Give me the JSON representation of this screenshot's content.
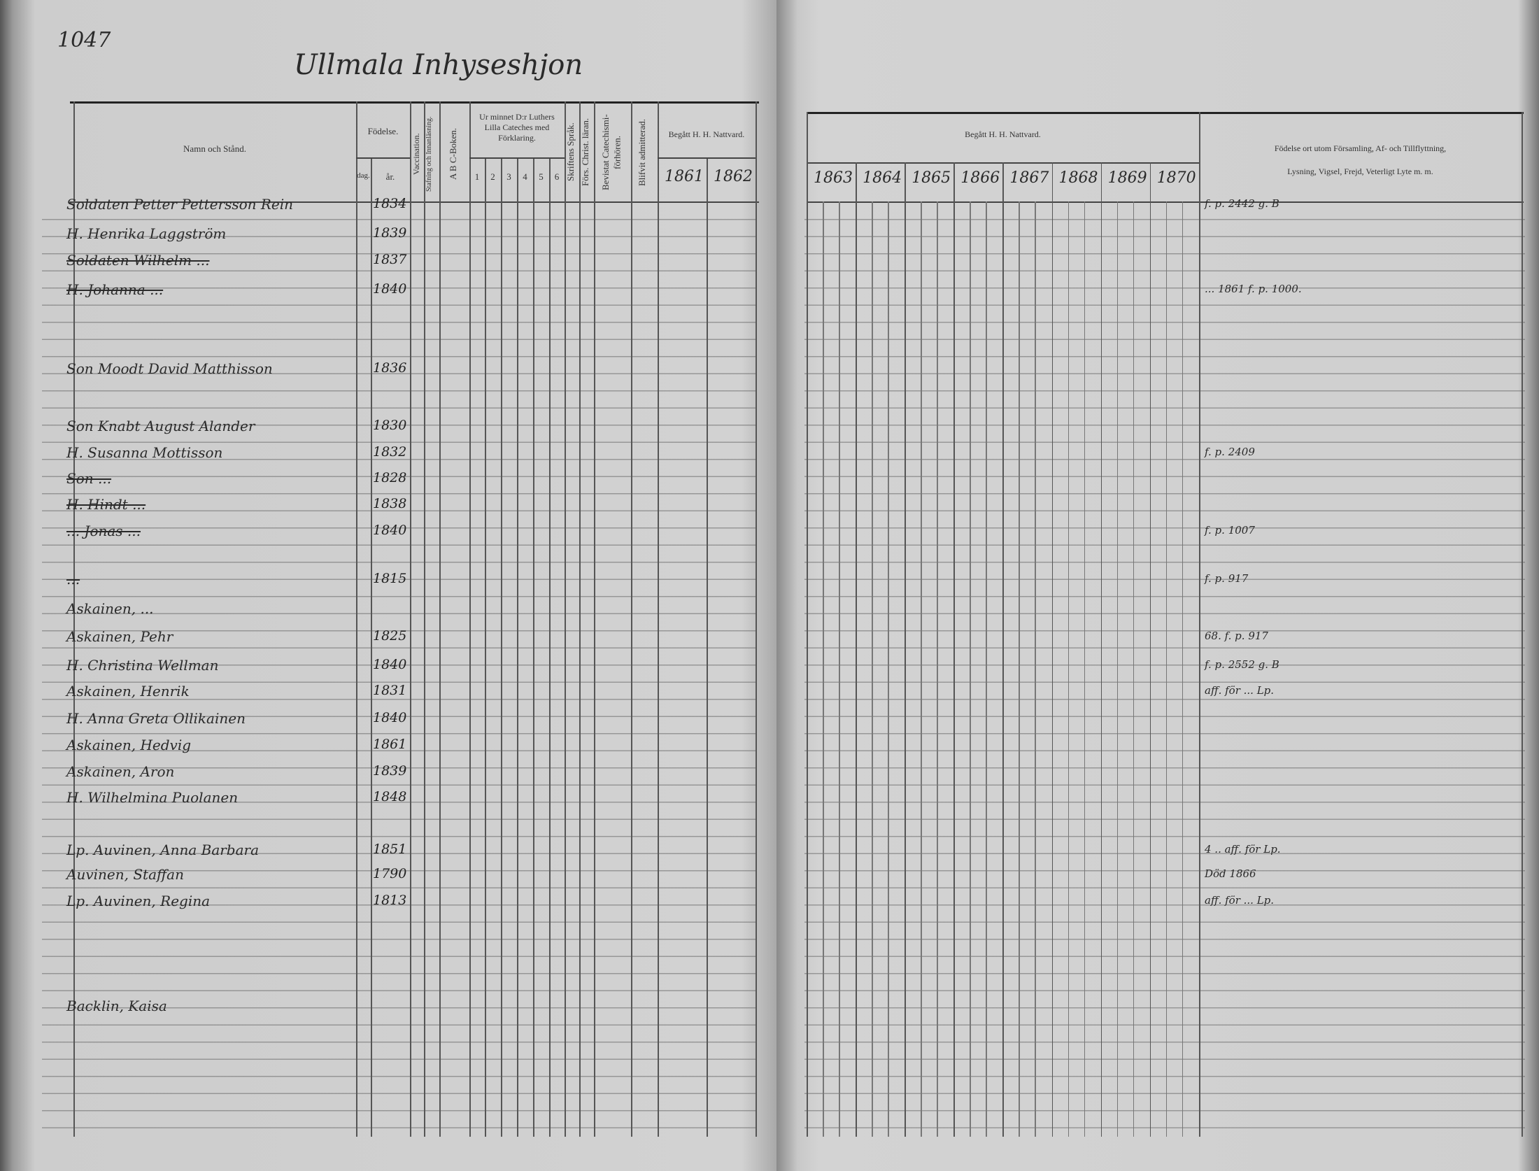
{
  "left_page": {
    "page_number": "1047",
    "title": "Ullmala Inhyseshjon",
    "headers": {
      "name": "Namn och Stånd.",
      "birth": "Födelse.",
      "birth_day": "dag.",
      "birth_year": "år.",
      "vaccination": "Vaccination.",
      "spelling": "Stafning och Innanläsning.",
      "abc": "A B C-Boken.",
      "catechism": "Ur minnet D:r Luthers Lilla Cateches med Förklaring.",
      "catechism_cols": [
        "1",
        "2",
        "3",
        "4",
        "5",
        "6"
      ],
      "scripture": "Skriftens Språk.",
      "christian": "Förs. Christ. läran.",
      "attended": "Bevistat Catechismi-förhören.",
      "admitted": "Blifvit admitterad.",
      "communion": "Begått H. H. Nattvard.",
      "years": [
        "1861",
        "1862"
      ]
    },
    "entries": [
      {
        "name": "Soldaten Petter Pettersson Rein",
        "year": "1834",
        "struck": false
      },
      {
        "name": "H. Henrika Laggström",
        "year": "1839",
        "struck": false
      },
      {
        "name": "Soldaten Wilhelm ...",
        "year": "1837",
        "struck": true
      },
      {
        "name": "H. Johanna ...",
        "year": "1840",
        "struck": true
      },
      {
        "name": "Son Moodt David Matthisson",
        "year": "1836",
        "struck": false
      },
      {
        "name": "Son Knabt August Alander",
        "year": "1830",
        "struck": false
      },
      {
        "name": "H. Susanna Mottisson",
        "year": "1832",
        "struck": false
      },
      {
        "name": "Son ...",
        "year": "1828",
        "struck": true
      },
      {
        "name": "H. Hindt ...",
        "year": "1838",
        "struck": true
      },
      {
        "name": "... Jonas ...",
        "year": "1840",
        "struck": true
      },
      {
        "name": "...",
        "year": "1815",
        "struck": true
      },
      {
        "name": "Askainen, ...",
        "year": "",
        "struck": false
      },
      {
        "name": "Askainen, Pehr",
        "year": "1825",
        "struck": false
      },
      {
        "name": "H. Christina Wellman",
        "year": "1840",
        "struck": false
      },
      {
        "name": "Askainen, Henrik",
        "year": "1831",
        "struck": false
      },
      {
        "name": "H. Anna Greta Ollikainen",
        "year": "1840",
        "struck": false
      },
      {
        "name": "Askainen, Hedvig",
        "year": "1861",
        "struck": false
      },
      {
        "name": "Askainen, Aron",
        "year": "1839",
        "struck": false
      },
      {
        "name": "H. Wilhelmina Puolanen",
        "year": "1848",
        "struck": false
      },
      {
        "name": "Lp. Auvinen, Anna Barbara",
        "year": "1851",
        "struck": false
      },
      {
        "name": "Auvinen, Staffan",
        "year": "1790",
        "struck": false
      },
      {
        "name": "Lp. Auvinen, Regina",
        "year": "1813",
        "struck": false
      },
      {
        "name": "Backlin, Kaisa",
        "year": "",
        "struck": false
      }
    ]
  },
  "right_page": {
    "headers": {
      "communion": "Begått H. H. Nattvard.",
      "years": [
        "1863",
        "1864",
        "1865",
        "1866",
        "1867",
        "1868",
        "1869",
        "1870"
      ],
      "notes_line1": "Födelse ort utom Församling, Af- och Tillflyttning,",
      "notes_line2": "Lysning, Vigsel, Frejd, Veterligt Lyte m. m."
    },
    "notes": [
      {
        "row": 0,
        "text": "f. p. 2442 g. B"
      },
      {
        "row": 3,
        "text": "... 1861 f. p. 1000."
      },
      {
        "row": 6,
        "text": "f. p. 2409"
      },
      {
        "row": 9,
        "text": "f. p. 1007"
      },
      {
        "row": 10,
        "text": "f. p. 917"
      },
      {
        "row": 12,
        "text": "68. f. p. 917"
      },
      {
        "row": 13,
        "text": "f. p. 2552 g. B"
      },
      {
        "row": 14,
        "text": "aff. för ... Lp."
      },
      {
        "row": 19,
        "text": "4 .. aff. för Lp."
      },
      {
        "row": 20,
        "text": "Död 1866"
      },
      {
        "row": 21,
        "text": "aff. för ... Lp."
      }
    ]
  }
}
